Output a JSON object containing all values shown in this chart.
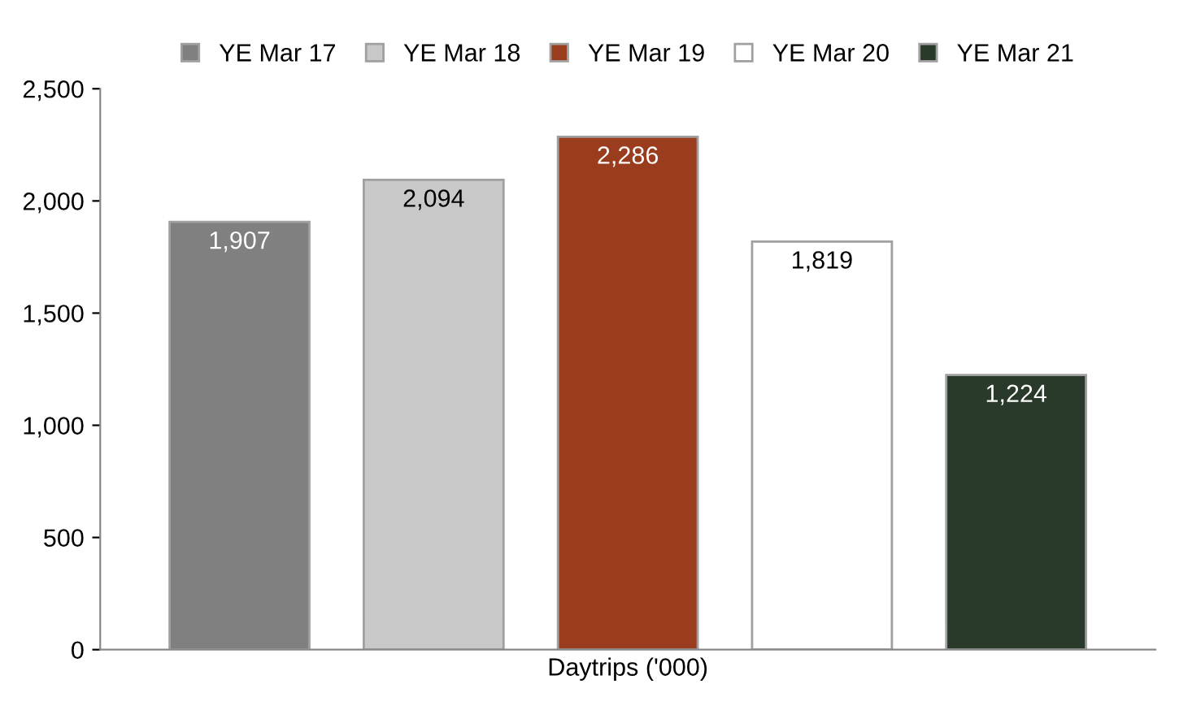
{
  "chart_data": {
    "type": "bar",
    "categories": [
      "Daytrips ('000)"
    ],
    "series": [
      {
        "name": "YE Mar 17",
        "color": "#808080",
        "values": [
          1907
        ],
        "value_labels": [
          "1,907"
        ]
      },
      {
        "name": "YE Mar 18",
        "color": "#c8c8c8",
        "values": [
          2094
        ],
        "value_labels": [
          "2,094"
        ]
      },
      {
        "name": "YE Mar 19",
        "color": "#9a3d1e",
        "values": [
          2286
        ],
        "value_labels": [
          "2,286"
        ]
      },
      {
        "name": "YE Mar 20",
        "color": "#ffffff",
        "values": [
          1819
        ],
        "value_labels": [
          "1,819"
        ]
      },
      {
        "name": "YE Mar 21",
        "color": "#2a3a2a",
        "values": [
          1224
        ],
        "value_labels": [
          "1,224"
        ]
      }
    ],
    "ylim": [
      0,
      2500
    ],
    "yticks": [
      {
        "value": 0,
        "label": "0"
      },
      {
        "value": 500,
        "label": "500"
      },
      {
        "value": 1000,
        "label": "1,000"
      },
      {
        "value": 1500,
        "label": "1,500"
      },
      {
        "value": 2000,
        "label": "2,000"
      },
      {
        "value": 2500,
        "label": "2,500"
      }
    ],
    "grid": false,
    "legend": "top"
  }
}
